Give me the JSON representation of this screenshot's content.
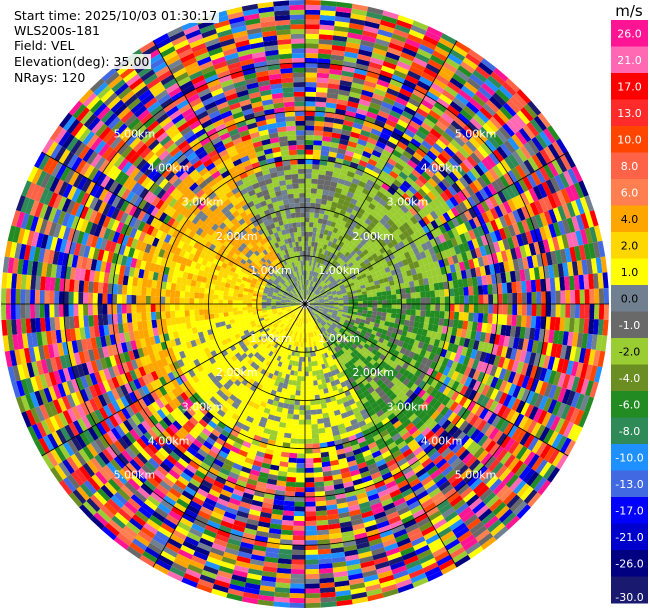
{
  "header": {
    "start_time": "Start time: 2025/10/03 01:30:17",
    "instrument": "WLS200s-181",
    "field": "Field: VEL",
    "elevation": "Elevation(deg): 35.00",
    "nrays": "NRays: 120"
  },
  "chart_data": {
    "type": "heatmap",
    "projection": "polar (PPI)",
    "rays": 120,
    "range_unit": "km",
    "range_ring_labels": [
      "1.00km",
      "2.00km",
      "3.00km",
      "4.00km",
      "5.00km"
    ],
    "range_rings_km": [
      1,
      2,
      3,
      4,
      5
    ],
    "max_range_km": 6.3,
    "colorbar": {
      "unit": "m/s",
      "ticks": [
        "26.0",
        "21.0",
        "17.0",
        "13.0",
        "10.0",
        "8.0",
        "6.0",
        "4.0",
        "2.0",
        "1.0",
        "0.0",
        "-1.0",
        "-2.0",
        "-4.0",
        "-6.0",
        "-8.0",
        "-10.0",
        "-13.0",
        "-17.0",
        "-21.0",
        "-26.0",
        "-30.0"
      ],
      "colors": [
        "#ff1493",
        "#ff69b4",
        "#ff0000",
        "#ff2a2a",
        "#ff4500",
        "#ff6347",
        "#ff7f50",
        "#ffa500",
        "#ffd700",
        "#ffff00",
        "#708090",
        "#696969",
        "#9acd32",
        "#6b8e23",
        "#228b22",
        "#2e8b57",
        "#1e90ff",
        "#4169e1",
        "#0000ff",
        "#0000cd",
        "#000080",
        "#191970"
      ]
    },
    "inner_pattern": "near-range winds: yellow/orange to the west and south, olive/green to the east, grey near zero, noisy high-magnitude colors beyond about 3 km"
  }
}
